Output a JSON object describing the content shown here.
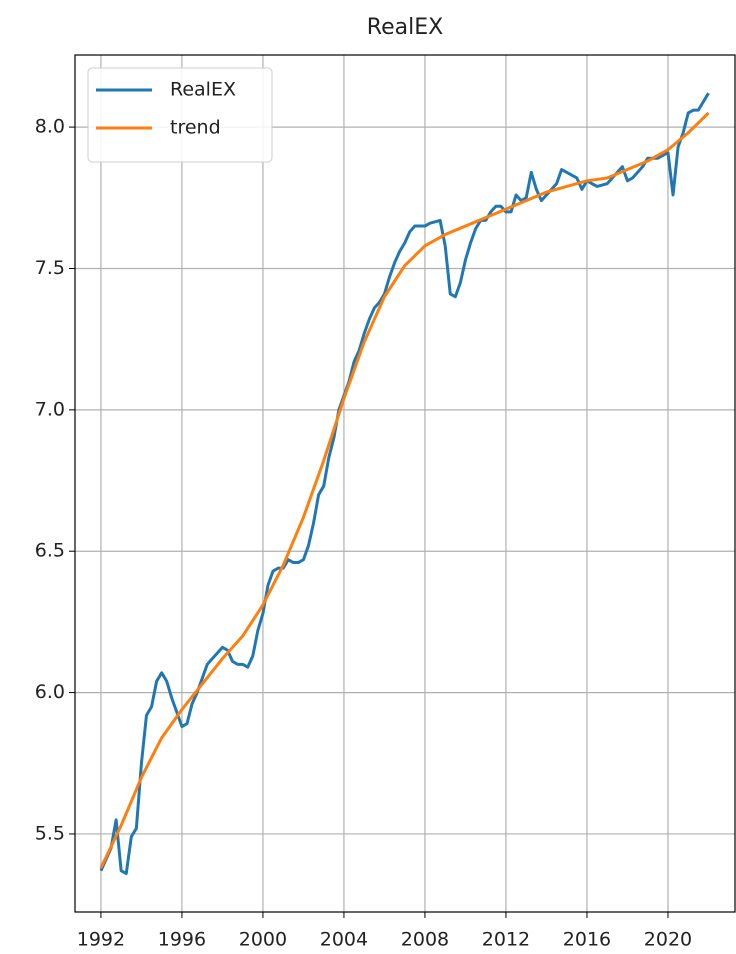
{
  "chart_data": {
    "type": "line",
    "title": "RealEX",
    "series": [
      {
        "name": "RealEX",
        "color": "#1f77b4",
        "x": [
          1992.0,
          1992.5,
          1992.75,
          1993.0,
          1993.25,
          1993.5,
          1993.75,
          1994.0,
          1994.25,
          1994.5,
          1994.75,
          1995.0,
          1995.25,
          1995.5,
          1995.75,
          1996.0,
          1996.25,
          1996.5,
          1996.75,
          1997.0,
          1997.25,
          1997.5,
          1997.75,
          1998.0,
          1998.25,
          1998.5,
          1998.75,
          1999.0,
          1999.25,
          1999.5,
          1999.75,
          2000.0,
          2000.25,
          2000.5,
          2000.75,
          2001.0,
          2001.25,
          2001.5,
          2001.75,
          2002.0,
          2002.25,
          2002.5,
          2002.75,
          2003.0,
          2003.25,
          2003.5,
          2003.75,
          2004.0,
          2004.25,
          2004.5,
          2004.75,
          2005.0,
          2005.25,
          2005.5,
          2005.75,
          2006.0,
          2006.25,
          2006.5,
          2006.75,
          2007.0,
          2007.25,
          2007.5,
          2008.0,
          2008.25,
          2008.75,
          2009.0,
          2009.25,
          2009.5,
          2009.75,
          2010.0,
          2010.25,
          2010.5,
          2010.75,
          2011.0,
          2011.25,
          2011.5,
          2011.75,
          2012.0,
          2012.25,
          2012.5,
          2012.75,
          2013.0,
          2013.25,
          2013.5,
          2013.75,
          2014.0,
          2014.5,
          2014.75,
          2015.0,
          2015.5,
          2015.75,
          2016.0,
          2016.25,
          2016.5,
          2017.0,
          2017.25,
          2017.75,
          2018.0,
          2018.25,
          2018.75,
          2019.0,
          2019.5,
          2020.0,
          2020.25,
          2020.5,
          2020.75,
          2021.0,
          2021.25,
          2021.5,
          2021.75,
          2022.0
        ],
        "values": [
          5.37,
          5.45,
          5.55,
          5.37,
          5.36,
          5.49,
          5.52,
          5.75,
          5.92,
          5.95,
          6.04,
          6.07,
          6.04,
          5.98,
          5.93,
          5.88,
          5.89,
          5.96,
          6.0,
          6.05,
          6.1,
          6.12,
          6.14,
          6.16,
          6.15,
          6.11,
          6.1,
          6.1,
          6.09,
          6.13,
          6.22,
          6.28,
          6.38,
          6.43,
          6.44,
          6.44,
          6.47,
          6.46,
          6.46,
          6.47,
          6.52,
          6.6,
          6.7,
          6.73,
          6.83,
          6.9,
          7.0,
          7.05,
          7.1,
          7.17,
          7.21,
          7.27,
          7.32,
          7.36,
          7.38,
          7.41,
          7.47,
          7.52,
          7.56,
          7.59,
          7.63,
          7.65,
          7.65,
          7.66,
          7.67,
          7.58,
          7.41,
          7.4,
          7.45,
          7.53,
          7.59,
          7.64,
          7.67,
          7.67,
          7.7,
          7.72,
          7.72,
          7.7,
          7.7,
          7.76,
          7.74,
          7.75,
          7.84,
          7.78,
          7.74,
          7.76,
          7.8,
          7.85,
          7.84,
          7.82,
          7.78,
          7.81,
          7.8,
          7.79,
          7.8,
          7.82,
          7.86,
          7.81,
          7.82,
          7.86,
          7.89,
          7.89,
          7.91,
          7.76,
          7.93,
          7.98,
          8.05,
          8.06,
          8.06,
          8.09,
          8.12
        ]
      },
      {
        "name": "trend",
        "color": "#ff7f0e",
        "x": [
          1992,
          1993,
          1994,
          1995,
          1996,
          1997,
          1998,
          1999,
          2000,
          2001,
          2002,
          2003,
          2004,
          2005,
          2006,
          2007,
          2008,
          2009,
          2010,
          2011,
          2012,
          2013,
          2014,
          2015,
          2016,
          2017,
          2018,
          2019,
          2020,
          2021,
          2022
        ],
        "values": [
          5.38,
          5.53,
          5.7,
          5.84,
          5.94,
          6.03,
          6.12,
          6.2,
          6.31,
          6.45,
          6.62,
          6.82,
          7.04,
          7.24,
          7.4,
          7.51,
          7.58,
          7.62,
          7.65,
          7.68,
          7.71,
          7.74,
          7.77,
          7.79,
          7.81,
          7.82,
          7.85,
          7.88,
          7.92,
          7.98,
          8.05
        ]
      }
    ],
    "xlim": [
      1990.72,
      2023.31
    ],
    "xticks": [
      1992,
      1996,
      2000,
      2004,
      2008,
      2012,
      2016,
      2020
    ],
    "ylim": [
      5.224,
      8.255
    ],
    "yticks": [
      {
        "value": 5.5,
        "label": "5.5"
      },
      {
        "value": 6,
        "label": "6.0"
      },
      {
        "value": 6.5,
        "label": "6.5"
      },
      {
        "value": 7,
        "label": "7.0"
      },
      {
        "value": 7.5,
        "label": "7.5"
      },
      {
        "value": 8,
        "label": "8.0"
      }
    ],
    "grid": true,
    "legend": "upper left"
  }
}
